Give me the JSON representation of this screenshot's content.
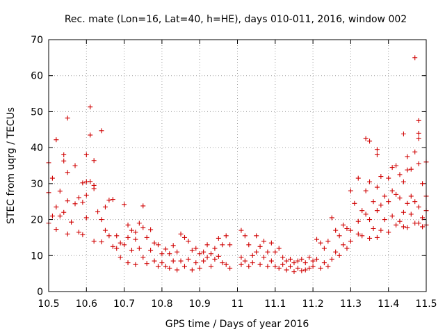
{
  "chart_data": {
    "type": "scatter",
    "title": "Rec. mate (Lon=16, Lat=40, h=HE), days 010-011, 2016, window 002",
    "xlabel": "GPS time / Days of year 2016",
    "ylabel": "STEC from uqrg / TECUs",
    "xlim": [
      10.5,
      11.5
    ],
    "ylim": [
      0,
      70
    ],
    "xticks": [
      "10.5",
      "10.6",
      "10.7",
      "10.8",
      "10.9",
      "11",
      "11.1",
      "11.2",
      "11.3",
      "11.4",
      "11.5"
    ],
    "yticks": [
      "0",
      "10",
      "20",
      "30",
      "40",
      "50",
      "60",
      "70"
    ],
    "grid": true,
    "marker": "+",
    "marker_color": "#d00000",
    "points": [
      [
        10.5,
        27.5
      ],
      [
        10.5,
        35.8
      ],
      [
        10.5,
        19.0
      ],
      [
        10.51,
        31.5
      ],
      [
        10.51,
        21.0
      ],
      [
        10.52,
        42.2
      ],
      [
        10.52,
        23.5
      ],
      [
        10.52,
        17.3
      ],
      [
        10.53,
        27.9
      ],
      [
        10.53,
        21.0
      ],
      [
        10.54,
        38.0
      ],
      [
        10.54,
        36.3
      ],
      [
        10.54,
        22.0
      ],
      [
        10.55,
        48.2
      ],
      [
        10.55,
        33.1
      ],
      [
        10.55,
        25.2
      ],
      [
        10.55,
        16.0
      ],
      [
        10.56,
        19.3
      ],
      [
        10.57,
        35.0
      ],
      [
        10.57,
        24.4
      ],
      [
        10.58,
        26.1
      ],
      [
        10.58,
        16.5
      ],
      [
        10.59,
        30.2
      ],
      [
        10.59,
        24.8
      ],
      [
        10.59,
        15.8
      ],
      [
        10.6,
        38.0
      ],
      [
        10.6,
        30.5
      ],
      [
        10.6,
        26.8
      ],
      [
        10.6,
        20.5
      ],
      [
        10.61,
        51.3
      ],
      [
        10.61,
        43.5
      ],
      [
        10.61,
        30.6
      ],
      [
        10.62,
        36.4
      ],
      [
        10.62,
        29.5
      ],
      [
        10.62,
        28.6
      ],
      [
        10.62,
        14.0
      ],
      [
        10.63,
        22.2
      ],
      [
        10.64,
        44.7
      ],
      [
        10.64,
        20.0
      ],
      [
        10.64,
        13.8
      ],
      [
        10.65,
        23.5
      ],
      [
        10.65,
        17.0
      ],
      [
        10.66,
        25.4
      ],
      [
        10.66,
        15.5
      ],
      [
        10.67,
        25.6
      ],
      [
        10.67,
        12.5
      ],
      [
        10.68,
        15.5
      ],
      [
        10.68,
        12.0
      ],
      [
        10.69,
        13.5
      ],
      [
        10.69,
        9.5
      ],
      [
        10.7,
        24.2
      ],
      [
        10.7,
        13.0
      ],
      [
        10.71,
        18.5
      ],
      [
        10.71,
        15.0
      ],
      [
        10.71,
        8.0
      ],
      [
        10.72,
        17.0
      ],
      [
        10.72,
        11.5
      ],
      [
        10.73,
        16.5
      ],
      [
        10.73,
        14.5
      ],
      [
        10.73,
        7.5
      ],
      [
        10.74,
        19.0
      ],
      [
        10.74,
        12.0
      ],
      [
        10.75,
        23.8
      ],
      [
        10.75,
        17.8
      ],
      [
        10.75,
        9.5
      ],
      [
        10.76,
        15.0
      ],
      [
        10.76,
        7.8
      ],
      [
        10.77,
        17.2
      ],
      [
        10.77,
        11.5
      ],
      [
        10.78,
        13.5
      ],
      [
        10.78,
        8.5
      ],
      [
        10.79,
        13.0
      ],
      [
        10.79,
        7.0
      ],
      [
        10.8,
        10.5
      ],
      [
        10.8,
        8.0
      ],
      [
        10.81,
        11.8
      ],
      [
        10.81,
        7.0
      ],
      [
        10.82,
        10.5
      ],
      [
        10.82,
        6.5
      ],
      [
        10.83,
        12.8
      ],
      [
        10.83,
        8.5
      ],
      [
        10.84,
        11.0
      ],
      [
        10.84,
        6.0
      ],
      [
        10.85,
        16.0
      ],
      [
        10.85,
        8.5
      ],
      [
        10.86,
        15.0
      ],
      [
        10.86,
        7.0
      ],
      [
        10.87,
        14.0
      ],
      [
        10.87,
        9.0
      ],
      [
        10.88,
        11.5
      ],
      [
        10.88,
        6.0
      ],
      [
        10.89,
        12.0
      ],
      [
        10.89,
        8.0
      ],
      [
        10.9,
        10.5
      ],
      [
        10.9,
        6.5
      ],
      [
        10.91,
        11.0
      ],
      [
        10.91,
        8.5
      ],
      [
        10.92,
        13.0
      ],
      [
        10.92,
        9.5
      ],
      [
        10.93,
        10.5
      ],
      [
        10.93,
        7.0
      ],
      [
        10.94,
        12.0
      ],
      [
        10.94,
        9.0
      ],
      [
        10.95,
        14.8
      ],
      [
        10.95,
        9.8
      ],
      [
        10.96,
        13.0
      ],
      [
        10.96,
        8.0
      ],
      [
        10.97,
        15.5
      ],
      [
        10.97,
        7.5
      ],
      [
        10.98,
        13.0
      ],
      [
        10.98,
        6.5
      ],
      [
        11.01,
        17.0
      ],
      [
        11.01,
        9.5
      ],
      [
        11.01,
        7.5
      ],
      [
        11.02,
        15.5
      ],
      [
        11.02,
        8.5
      ],
      [
        11.03,
        13.0
      ],
      [
        11.03,
        7.0
      ],
      [
        11.04,
        10.0
      ],
      [
        11.04,
        8.0
      ],
      [
        11.05,
        15.5
      ],
      [
        11.05,
        11.0
      ],
      [
        11.06,
        12.5
      ],
      [
        11.06,
        7.5
      ],
      [
        11.07,
        14.0
      ],
      [
        11.07,
        9.5
      ],
      [
        11.08,
        11.0
      ],
      [
        11.08,
        7.0
      ],
      [
        11.09,
        13.5
      ],
      [
        11.09,
        8.5
      ],
      [
        11.1,
        11.0
      ],
      [
        11.1,
        7.0
      ],
      [
        11.11,
        12.0
      ],
      [
        11.11,
        6.5
      ],
      [
        11.12,
        9.5
      ],
      [
        11.12,
        7.5
      ],
      [
        11.13,
        8.5
      ],
      [
        11.13,
        6.0
      ],
      [
        11.14,
        9.0
      ],
      [
        11.14,
        7.0
      ],
      [
        11.15,
        8.0
      ],
      [
        11.15,
        5.5
      ],
      [
        11.16,
        8.5
      ],
      [
        11.16,
        6.5
      ],
      [
        11.17,
        9.0
      ],
      [
        11.17,
        5.8
      ],
      [
        11.18,
        8.0
      ],
      [
        11.18,
        6.0
      ],
      [
        11.19,
        9.5
      ],
      [
        11.19,
        6.5
      ],
      [
        11.2,
        8.5
      ],
      [
        11.2,
        7.0
      ],
      [
        11.21,
        14.5
      ],
      [
        11.21,
        9.0
      ],
      [
        11.22,
        13.5
      ],
      [
        11.22,
        6.5
      ],
      [
        11.23,
        12.0
      ],
      [
        11.23,
        8.0
      ],
      [
        11.24,
        14.0
      ],
      [
        11.24,
        7.0
      ],
      [
        11.25,
        20.5
      ],
      [
        11.25,
        9.0
      ],
      [
        11.26,
        17.0
      ],
      [
        11.26,
        11.0
      ],
      [
        11.27,
        15.5
      ],
      [
        11.27,
        10.0
      ],
      [
        11.28,
        18.5
      ],
      [
        11.28,
        13.0
      ],
      [
        11.29,
        17.5
      ],
      [
        11.29,
        12.0
      ],
      [
        11.3,
        28.0
      ],
      [
        11.3,
        17.0
      ],
      [
        11.3,
        14.0
      ],
      [
        11.31,
        24.5
      ],
      [
        11.32,
        31.5
      ],
      [
        11.32,
        19.5
      ],
      [
        11.32,
        16.0
      ],
      [
        11.33,
        22.5
      ],
      [
        11.33,
        15.5
      ],
      [
        11.34,
        42.5
      ],
      [
        11.34,
        28.0
      ],
      [
        11.34,
        21.5
      ],
      [
        11.35,
        41.8
      ],
      [
        11.35,
        30.5
      ],
      [
        11.35,
        20.0
      ],
      [
        11.35,
        14.8
      ],
      [
        11.36,
        25.0
      ],
      [
        11.36,
        17.5
      ],
      [
        11.37,
        39.5
      ],
      [
        11.37,
        38.0
      ],
      [
        11.37,
        29.0
      ],
      [
        11.37,
        22.5
      ],
      [
        11.37,
        15.0
      ],
      [
        11.38,
        32.0
      ],
      [
        11.38,
        24.0
      ],
      [
        11.38,
        17.0
      ],
      [
        11.39,
        26.5
      ],
      [
        11.39,
        20.0
      ],
      [
        11.4,
        31.5
      ],
      [
        11.4,
        25.0
      ],
      [
        11.4,
        16.5
      ],
      [
        11.41,
        34.5
      ],
      [
        11.41,
        28.0
      ],
      [
        11.41,
        21.0
      ],
      [
        11.42,
        35.0
      ],
      [
        11.42,
        27.0
      ],
      [
        11.42,
        18.5
      ],
      [
        11.43,
        32.5
      ],
      [
        11.43,
        26.0
      ],
      [
        11.43,
        19.5
      ],
      [
        11.44,
        43.8
      ],
      [
        11.44,
        30.5
      ],
      [
        11.44,
        22.0
      ],
      [
        11.44,
        18.0
      ],
      [
        11.45,
        37.5
      ],
      [
        11.45,
        33.8
      ],
      [
        11.45,
        24.5
      ],
      [
        11.45,
        17.8
      ],
      [
        11.46,
        34.0
      ],
      [
        11.46,
        26.5
      ],
      [
        11.46,
        21.5
      ],
      [
        11.47,
        65.0
      ],
      [
        11.47,
        38.8
      ],
      [
        11.47,
        25.0
      ],
      [
        11.47,
        19.0
      ],
      [
        11.48,
        47.5
      ],
      [
        11.48,
        44.0
      ],
      [
        11.48,
        42.5
      ],
      [
        11.48,
        35.5
      ],
      [
        11.48,
        23.5
      ],
      [
        11.48,
        19.0
      ],
      [
        11.49,
        30.0
      ],
      [
        11.49,
        20.5
      ],
      [
        11.49,
        18.0
      ],
      [
        11.5,
        36.0
      ],
      [
        11.5,
        26.5
      ],
      [
        11.5,
        22.5
      ],
      [
        11.5,
        18.5
      ]
    ]
  }
}
